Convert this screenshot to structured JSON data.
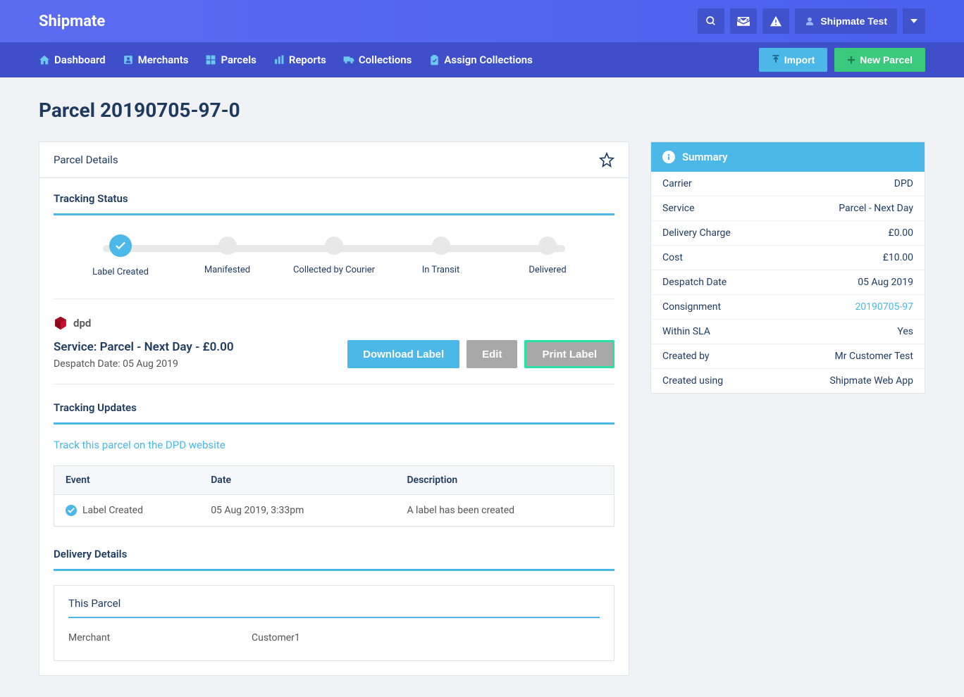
{
  "header": {
    "logo": "Shipmate",
    "user_label": "Shipmate Test"
  },
  "nav": {
    "items": [
      "Dashboard",
      "Merchants",
      "Parcels",
      "Reports",
      "Collections",
      "Assign Collections"
    ],
    "import_label": "Import",
    "new_parcel_label": "New Parcel"
  },
  "page": {
    "title": "Parcel 20190705-97-0"
  },
  "details": {
    "panel_title": "Parcel Details",
    "tracking_status_title": "Tracking Status",
    "steps": [
      "Label Created",
      "Manifested",
      "Collected by Courier",
      "In Transit",
      "Delivered"
    ],
    "active_step": 0,
    "carrier_name": "dpd",
    "service_line": "Service: Parcel - Next Day - £0.00",
    "despatch_line": "Despatch Date: 05 Aug 2019",
    "download_label": "Download Label",
    "edit_label": "Edit",
    "print_label": "Print Label",
    "updates_title": "Tracking Updates",
    "track_link": "Track this parcel on the DPD website",
    "updates_columns": [
      "Event",
      "Date",
      "Description"
    ],
    "updates_rows": [
      {
        "event": "Label Created",
        "date": "05 Aug 2019, 3:33pm",
        "description": "A label has been created"
      }
    ],
    "delivery_title": "Delivery Details",
    "delivery_subtitle": "This Parcel",
    "merchant_key": "Merchant",
    "merchant_val": "Customer1"
  },
  "summary": {
    "title": "Summary",
    "rows": [
      {
        "key": "Carrier",
        "val": "DPD",
        "link": false
      },
      {
        "key": "Service",
        "val": "Parcel - Next Day",
        "link": false
      },
      {
        "key": "Delivery Charge",
        "val": "£0.00",
        "link": false
      },
      {
        "key": "Cost",
        "val": "£10.00",
        "link": false
      },
      {
        "key": "Despatch Date",
        "val": "05 Aug 2019",
        "link": false
      },
      {
        "key": "Consignment",
        "val": "20190705-97",
        "link": true
      },
      {
        "key": "Within SLA",
        "val": "Yes",
        "link": false
      },
      {
        "key": "Created by",
        "val": "Mr Customer Test",
        "link": false
      },
      {
        "key": "Created using",
        "val": "Shipmate Web App",
        "link": false
      }
    ]
  },
  "colors": {
    "topbar_gradient_start": "#5b6cf0",
    "topbar_gradient_end": "#4a5fed",
    "navbar": "#3f4fc9",
    "accent": "#4bb8e8",
    "green": "#3bc97e",
    "highlight_border": "#2be0a5",
    "page_bg": "#f0f2f5",
    "text_dark": "#1e3a5f"
  }
}
